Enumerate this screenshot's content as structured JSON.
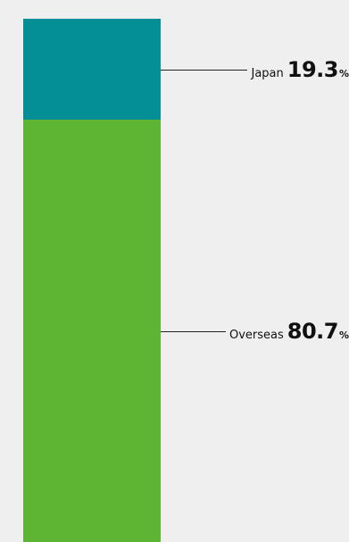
{
  "chart_data": {
    "type": "bar",
    "stacked": true,
    "categories": [
      "Japan",
      "Overseas"
    ],
    "values": [
      19.3,
      80.7
    ],
    "unit": "%",
    "colors": [
      "#048e96",
      "#5eb534"
    ],
    "labels": [
      {
        "name": "Japan",
        "value": "19.3",
        "unit": "%"
      },
      {
        "name": "Overseas",
        "value": "80.7",
        "unit": "%"
      }
    ]
  }
}
